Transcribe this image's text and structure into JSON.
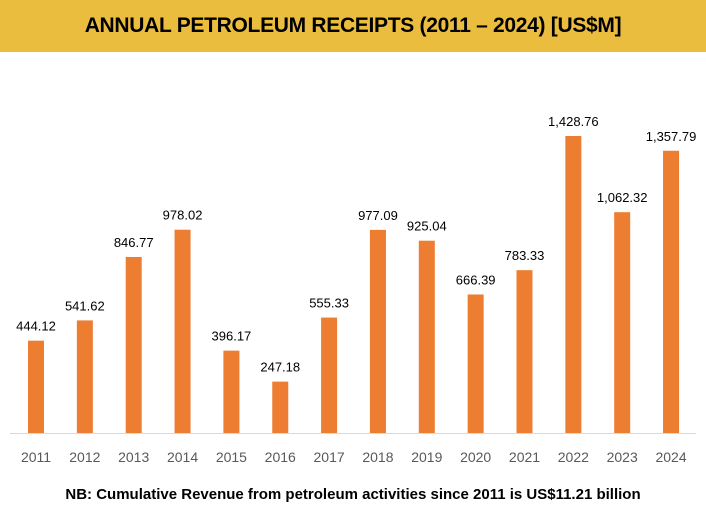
{
  "chart_data": {
    "type": "bar",
    "title": "ANNUAL PETROLEUM RECEIPTS (2011 – 2024) [US$M]",
    "xlabel": "",
    "ylabel": "",
    "ylim": [
      0,
      1500
    ],
    "grid": false,
    "categories": [
      "2011",
      "2012",
      "2013",
      "2014",
      "2015",
      "2016",
      "2017",
      "2018",
      "2019",
      "2020",
      "2021",
      "2022",
      "2023",
      "2024"
    ],
    "values": [
      444.12,
      541.62,
      846.77,
      978.02,
      396.17,
      247.18,
      555.33,
      977.09,
      925.04,
      666.39,
      783.33,
      1428.76,
      1062.32,
      1357.79
    ],
    "data_labels": [
      "444.12",
      "541.62",
      "846.77",
      "978.02",
      "396.17",
      "247.18",
      "555.33",
      "977.09",
      "925.04",
      "666.39",
      "783.33",
      "1,428.76",
      "1,062.32",
      "1,357.79"
    ],
    "bar_color": "#ED7D31",
    "header_color": "#EBBD3E"
  },
  "footnote": "NB: Cumulative Revenue from petroleum activities since 2011 is US$11.21 billion"
}
